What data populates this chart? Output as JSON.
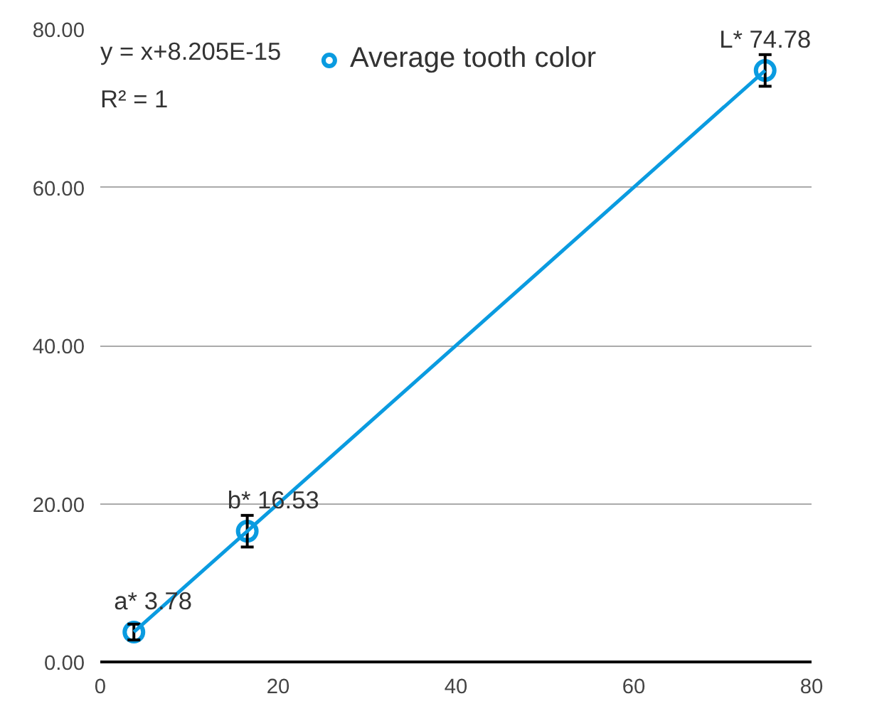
{
  "chart_data": {
    "type": "scatter",
    "x": [
      3.78,
      16.53,
      74.78
    ],
    "series": [
      {
        "name": "Average tooth color",
        "color": "#0a9be0",
        "values": [
          3.78,
          16.53,
          74.78
        ],
        "errors": [
          1,
          2,
          2
        ],
        "marker": "circle"
      },
      {
        "type": "line",
        "color": "#0a9be0",
        "x": [
          3.78,
          74.78
        ],
        "values": [
          3.78,
          74.78
        ]
      }
    ],
    "xlim": [
      0,
      80
    ],
    "ylim": [
      0,
      80
    ],
    "xticks": [
      0,
      20,
      40,
      60,
      80
    ],
    "yticks": [
      {
        "value": 0,
        "label": "0.00"
      },
      {
        "value": 20,
        "label": "20.00"
      },
      {
        "value": 40,
        "label": "40.00"
      },
      {
        "value": 60,
        "label": "60.00"
      },
      {
        "value": 80,
        "label": "80.00"
      }
    ],
    "grid": "y",
    "legend": "top",
    "annotations": [
      {
        "text": "a* 3.78",
        "x": 3.78,
        "y": 3.78
      },
      {
        "text": "b* 16.53",
        "x": 16.53,
        "y": 16.53
      },
      {
        "text": "L* 74.78",
        "x": 74.78,
        "y": 74.78
      },
      "y = x+8.205E-15",
      "R² = 1"
    ]
  }
}
